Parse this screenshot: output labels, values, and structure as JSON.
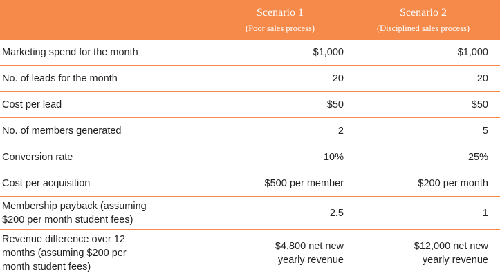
{
  "header": {
    "scenario1_title": "Scenario 1",
    "scenario1_subtitle": "(Poor sales process)",
    "scenario2_title": "Scenario 2",
    "scenario2_subtitle": "(Disciplined sales process)"
  },
  "rows": [
    {
      "label": "Marketing spend for the month",
      "scenario1": "$1,000",
      "scenario2": "$1,000"
    },
    {
      "label": "No. of leads for the month",
      "scenario1": "20",
      "scenario2": "20"
    },
    {
      "label": "Cost per lead",
      "scenario1": "$50",
      "scenario2": "$50"
    },
    {
      "label": "No. of members generated",
      "scenario1": "2",
      "scenario2": "5"
    },
    {
      "label": "Conversion rate",
      "scenario1": "10%",
      "scenario2": "25%"
    },
    {
      "label": "Cost per acquisition",
      "scenario1": "$500 per member",
      "scenario2": "$200 per month"
    },
    {
      "label": "Membership payback (assuming\n$200 per month student fees)",
      "scenario1": "2.5",
      "scenario2": "1"
    },
    {
      "label": "Revenue difference over 12\nmonths (assuming $200 per\nmonth student fees)",
      "scenario1": "$4,800 net new\nyearly revenue",
      "scenario2": "$12,000 net new\nyearly revenue"
    }
  ],
  "colors": {
    "header_background": "#f58a4b",
    "row_divider": "#f58a4b",
    "header_text": "#ffffff"
  }
}
